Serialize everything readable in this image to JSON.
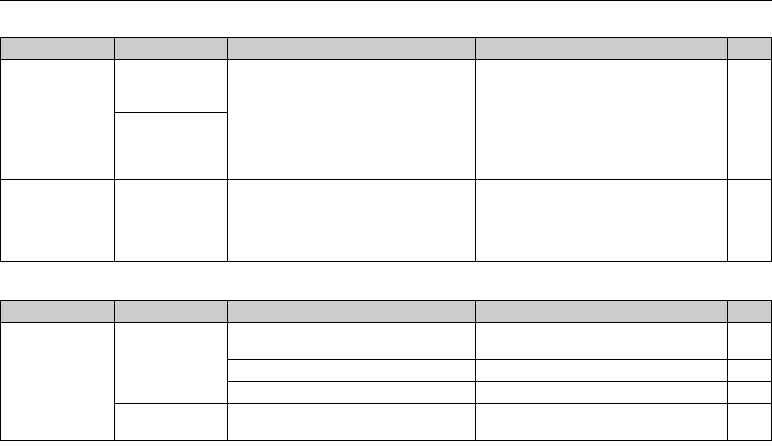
{
  "colors": {
    "header_fill": "#cccccc",
    "border": "#000000"
  }
}
